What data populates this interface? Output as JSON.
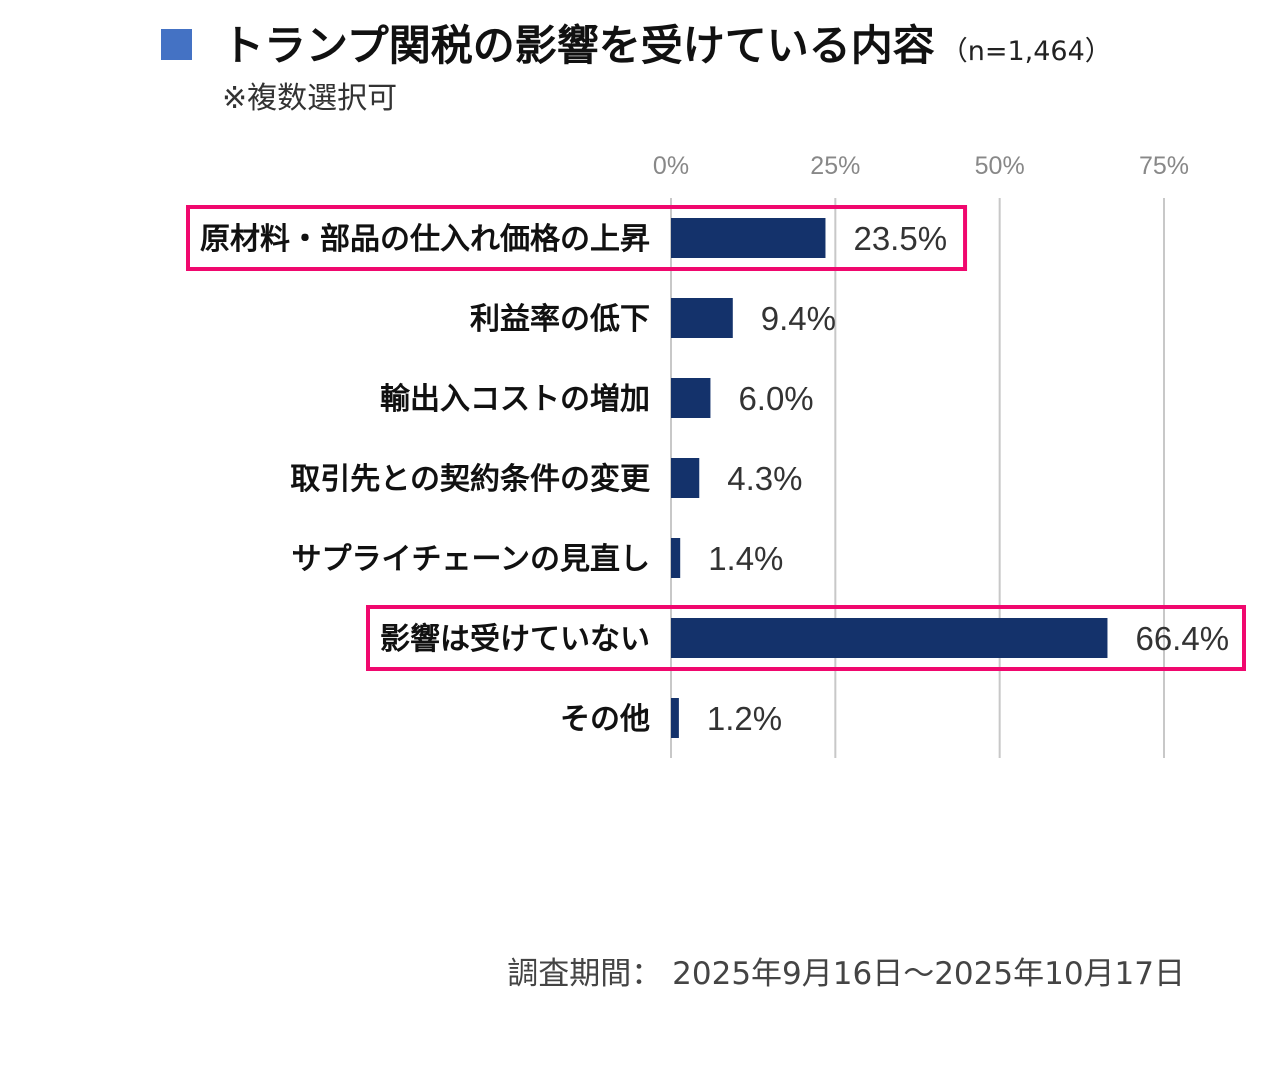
{
  "title": {
    "text": "トランプ関税の影響を受けている内容",
    "n_label": "（n=1,464）",
    "subtitle": "※複数選択可",
    "marker_color": "#4472c4"
  },
  "chart_data": {
    "type": "bar",
    "orientation": "horizontal",
    "categories": [
      "原材料・部品の仕入れ価格の上昇",
      "利益率の低下",
      "輸出入コストの増加",
      "取引先との契約条件の変更",
      "サプライチェーンの見直し",
      "影響は受けていない",
      "その他"
    ],
    "values": [
      23.5,
      9.4,
      6.0,
      4.3,
      1.4,
      66.4,
      1.2
    ],
    "value_labels": [
      "23.5%",
      "9.4%",
      "6.0%",
      "4.3%",
      "1.4%",
      "66.4%",
      "1.2%"
    ],
    "highlighted": [
      "原材料・部品の仕入れ価格の上昇",
      "影響は受けていない"
    ],
    "x_ticks": [
      0,
      25,
      50,
      75
    ],
    "x_tick_labels": [
      "0%",
      "25%",
      "50%",
      "75%"
    ],
    "xlim": [
      0,
      75
    ],
    "grid": true,
    "bar_color": "#14326b",
    "highlight_color": "#f0086e",
    "gridline_color": "#c8c8c8",
    "tick_color": "#888888"
  },
  "footnote": "調査期間： 2025年9月16日～2025年10月17日"
}
